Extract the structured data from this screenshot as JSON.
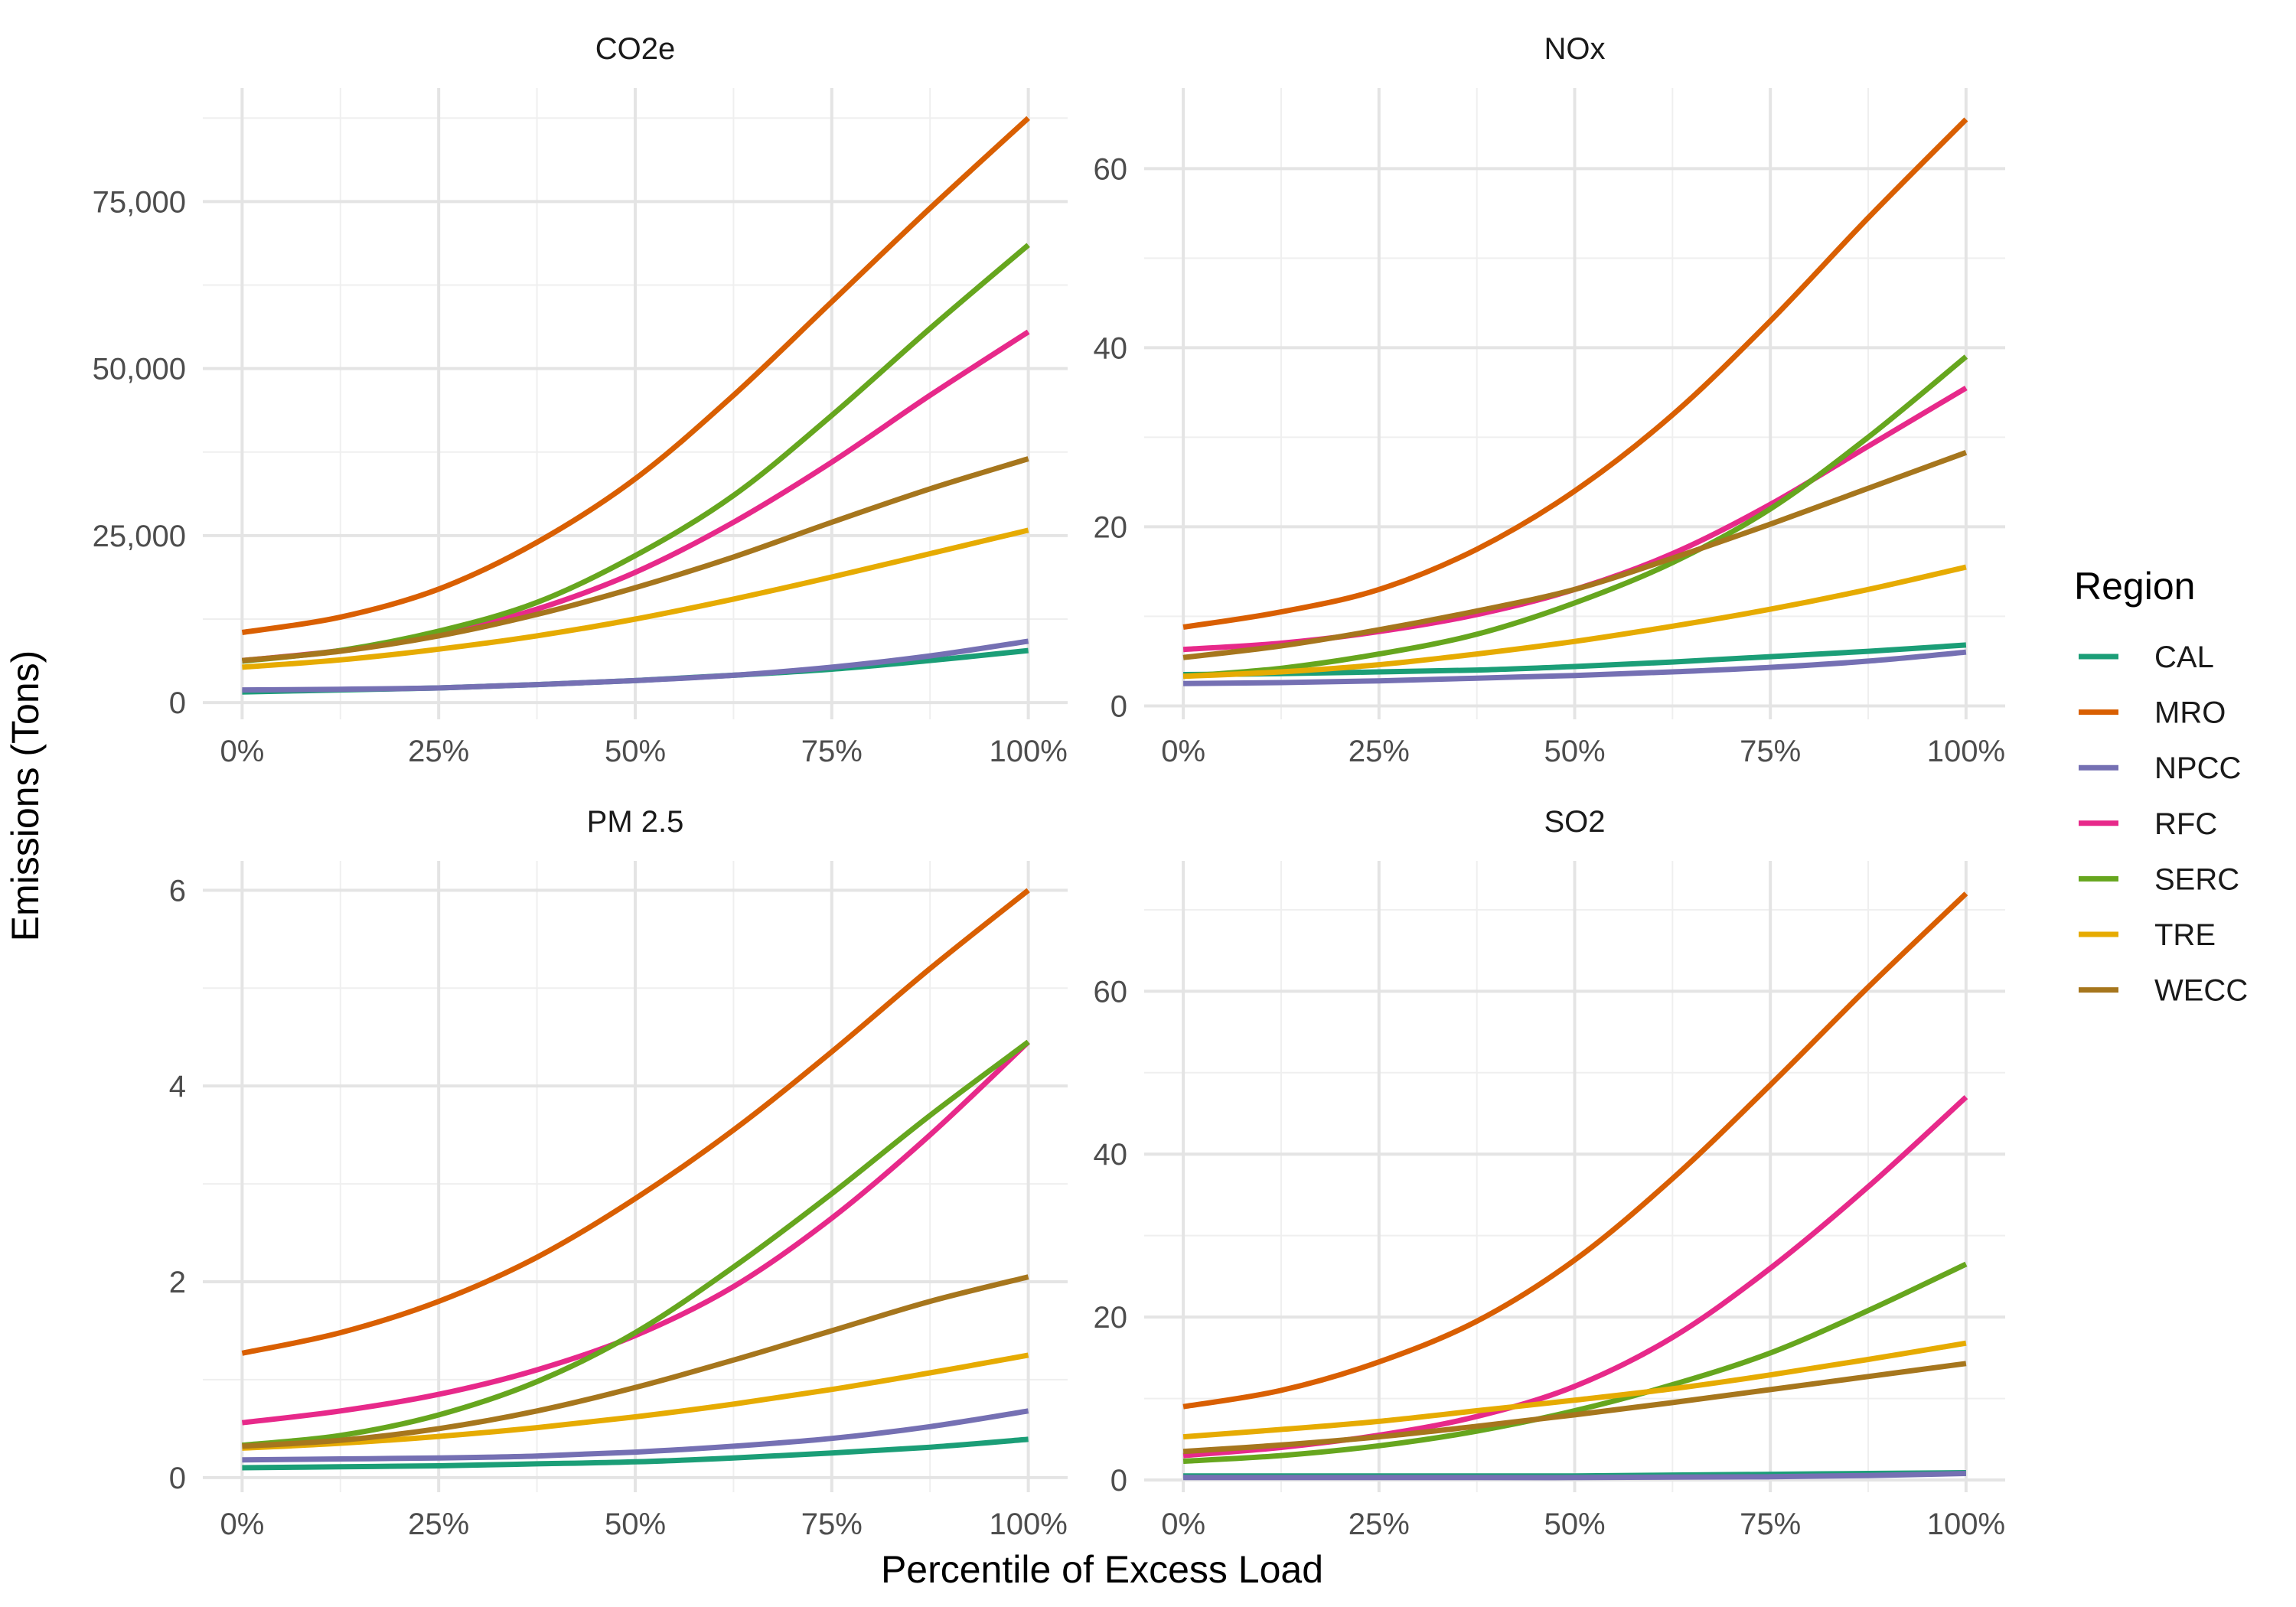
{
  "chart_data": {
    "type": "line",
    "xlabel": "Percentile of Excess Load",
    "ylabel": "Emissions (Tons)",
    "legend": {
      "title": "Region",
      "position": "right",
      "entries": [
        {
          "name": "CAL",
          "color": "#1b9e77"
        },
        {
          "name": "MRO",
          "color": "#d95f02"
        },
        {
          "name": "NPCC",
          "color": "#7570b3"
        },
        {
          "name": "RFC",
          "color": "#e7298a"
        },
        {
          "name": "SERC",
          "color": "#66a61e"
        },
        {
          "name": "TRE",
          "color": "#e6ab02"
        },
        {
          "name": "WECC",
          "color": "#a6761d"
        }
      ]
    },
    "grid": true,
    "x": [
      0,
      12.5,
      25,
      37.5,
      50,
      62.5,
      75,
      87.5,
      100
    ],
    "xlim": [
      -5,
      105
    ],
    "xticks": [
      0,
      25,
      50,
      75,
      100
    ],
    "xtick_labels": [
      "0%",
      "25%",
      "50%",
      "75%",
      "100%"
    ],
    "panels": [
      {
        "title": "CO2e",
        "ylim": [
          -2500,
          92000
        ],
        "yticks": [
          0,
          25000,
          50000,
          75000
        ],
        "ytick_labels": [
          "0",
          "25,000",
          "50,000",
          "75,000"
        ],
        "series": [
          {
            "name": "CAL",
            "values": [
              1600,
              1900,
              2200,
              2700,
              3300,
              4100,
              5000,
              6300,
              7800
            ]
          },
          {
            "name": "MRO",
            "values": [
              10500,
              12800,
              17000,
              24000,
              33500,
              46000,
              60000,
              74000,
              87500
            ]
          },
          {
            "name": "NPCC",
            "values": [
              1900,
              2000,
              2200,
              2700,
              3300,
              4100,
              5300,
              7000,
              9200
            ]
          },
          {
            "name": "RFC",
            "values": [
              6300,
              7800,
              10200,
              14000,
              19500,
              27000,
              36000,
              46000,
              55500
            ]
          },
          {
            "name": "SERC",
            "values": [
              6200,
              7800,
              10700,
              15000,
              22000,
              31000,
              43000,
              56000,
              68500
            ]
          },
          {
            "name": "TRE",
            "values": [
              5300,
              6400,
              8000,
              10000,
              12500,
              15500,
              18800,
              22300,
              25800
            ]
          },
          {
            "name": "WECC",
            "values": [
              6300,
              7700,
              10000,
              13200,
              17200,
              21800,
              27000,
              32000,
              36500
            ]
          }
        ]
      },
      {
        "title": "NOx",
        "ylim": [
          -1.5,
          69
        ],
        "yticks": [
          0,
          20,
          40,
          60
        ],
        "ytick_labels": [
          "0",
          "20",
          "40",
          "60"
        ],
        "series": [
          {
            "name": "CAL",
            "values": [
              3.5,
              3.6,
              3.8,
              4.0,
              4.4,
              4.9,
              5.5,
              6.1,
              6.8
            ]
          },
          {
            "name": "MRO",
            "values": [
              8.8,
              10.5,
              13.0,
              17.5,
              24.0,
              32.5,
              43.0,
              54.5,
              65.5
            ]
          },
          {
            "name": "NPCC",
            "values": [
              2.5,
              2.6,
              2.8,
              3.1,
              3.4,
              3.8,
              4.3,
              5.0,
              6.0
            ]
          },
          {
            "name": "RFC",
            "values": [
              6.3,
              7.0,
              8.3,
              10.2,
              13.0,
              17.0,
              22.5,
              29.0,
              35.5
            ]
          },
          {
            "name": "SERC",
            "values": [
              3.3,
              4.2,
              5.8,
              8.0,
              11.5,
              16.0,
              22.0,
              30.0,
              39.0
            ]
          },
          {
            "name": "TRE",
            "values": [
              3.3,
              3.8,
              4.6,
              5.8,
              7.2,
              8.9,
              10.8,
              13.0,
              15.5
            ]
          },
          {
            "name": "WECC",
            "values": [
              5.4,
              6.7,
              8.5,
              10.6,
              13.0,
              16.5,
              20.3,
              24.3,
              28.3
            ]
          }
        ]
      },
      {
        "title": "PM 2.5",
        "ylim": [
          -0.15,
          6.3
        ],
        "yticks": [
          0,
          2,
          4,
          6
        ],
        "ytick_labels": [
          "0",
          "2",
          "4",
          "6"
        ],
        "series": [
          {
            "name": "CAL",
            "values": [
              0.1,
              0.11,
              0.12,
              0.14,
              0.16,
              0.2,
              0.25,
              0.31,
              0.39
            ]
          },
          {
            "name": "MRO",
            "values": [
              1.27,
              1.48,
              1.8,
              2.25,
              2.85,
              3.55,
              4.35,
              5.2,
              6.0
            ]
          },
          {
            "name": "NPCC",
            "values": [
              0.18,
              0.19,
              0.2,
              0.22,
              0.26,
              0.32,
              0.4,
              0.52,
              0.68
            ]
          },
          {
            "name": "RFC",
            "values": [
              0.56,
              0.68,
              0.85,
              1.1,
              1.45,
              1.95,
              2.65,
              3.5,
              4.45
            ]
          },
          {
            "name": "SERC",
            "values": [
              0.33,
              0.43,
              0.64,
              0.98,
              1.48,
              2.15,
              2.9,
              3.7,
              4.45
            ]
          },
          {
            "name": "TRE",
            "values": [
              0.3,
              0.35,
              0.42,
              0.51,
              0.62,
              0.75,
              0.9,
              1.07,
              1.25
            ]
          },
          {
            "name": "WECC",
            "values": [
              0.32,
              0.38,
              0.5,
              0.68,
              0.92,
              1.2,
              1.5,
              1.8,
              2.05
            ]
          }
        ]
      },
      {
        "title": "SO2",
        "ylim": [
          -1.5,
          76
        ],
        "yticks": [
          0,
          20,
          40,
          60
        ],
        "ytick_labels": [
          "0",
          "20",
          "40",
          "60"
        ],
        "series": [
          {
            "name": "CAL",
            "values": [
              0.5,
              0.5,
              0.5,
              0.5,
              0.5,
              0.6,
              0.7,
              0.8,
              0.9
            ]
          },
          {
            "name": "MRO",
            "values": [
              9.0,
              11.0,
              14.5,
              19.5,
              27.0,
              37.0,
              48.5,
              60.5,
              72.0
            ]
          },
          {
            "name": "NPCC",
            "values": [
              0.3,
              0.3,
              0.3,
              0.3,
              0.3,
              0.35,
              0.4,
              0.55,
              0.8
            ]
          },
          {
            "name": "RFC",
            "values": [
              3.0,
              4.0,
              5.5,
              7.8,
              11.5,
              17.5,
              26.0,
              36.0,
              47.0
            ]
          },
          {
            "name": "SERC",
            "values": [
              2.3,
              3.0,
              4.2,
              6.0,
              8.5,
              11.7,
              15.6,
              20.8,
              26.5
            ]
          },
          {
            "name": "TRE",
            "values": [
              5.3,
              6.2,
              7.2,
              8.5,
              9.8,
              11.2,
              12.9,
              14.8,
              16.8
            ]
          },
          {
            "name": "WECC",
            "values": [
              3.5,
              4.3,
              5.3,
              6.6,
              8.0,
              9.5,
              11.1,
              12.7,
              14.3
            ]
          }
        ]
      }
    ]
  }
}
